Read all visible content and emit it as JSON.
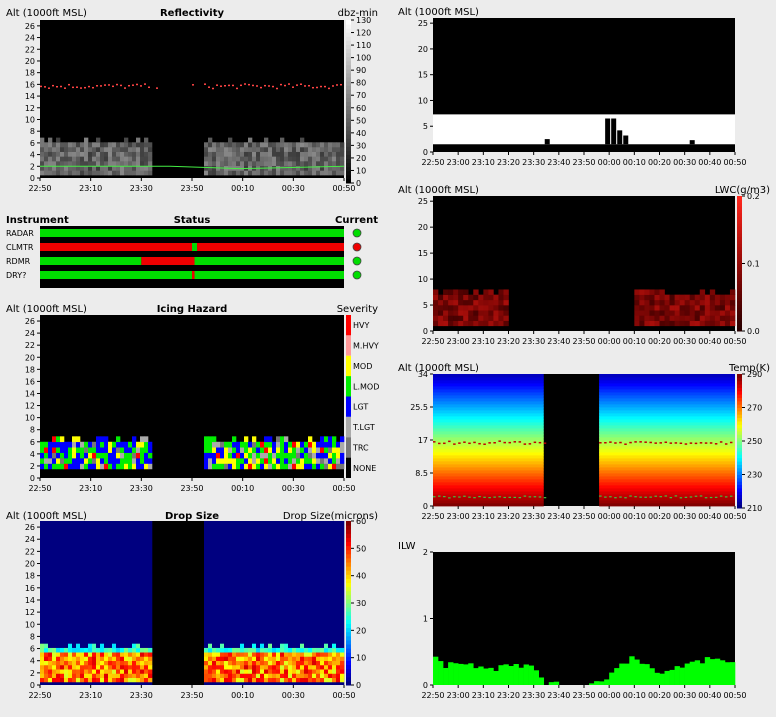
{
  "time_ticks": [
    "22:50",
    "23:10",
    "23:30",
    "23:50",
    "00:10",
    "00:30",
    "00:50"
  ],
  "time_ticks_right": [
    "22:50",
    "23:00",
    "23:10",
    "23:20",
    "23:30",
    "23:40",
    "23:50",
    "00:00",
    "00:10",
    "00:20",
    "00:30",
    "00:40",
    "00:50"
  ],
  "data_gap": {
    "start": "23:35",
    "end": "23:55"
  },
  "colors": {
    "background": "#ececec",
    "plot": "#000000",
    "status_ok": "#00dd00",
    "status_bad": "#ee0000",
    "melting_layer": "#ff4444",
    "cloud_base": "#44ee44",
    "ilw": "#00ff00",
    "drop_background": "#000080"
  },
  "panels": {
    "reflectivity": {
      "alt_label": "Alt (1000ft MSL)",
      "title": "Reflectivity",
      "unit": "dbz-min",
      "yticks": [
        0,
        2,
        4,
        6,
        8,
        10,
        12,
        14,
        16,
        18,
        20,
        22,
        24,
        26
      ],
      "colorbar_ticks": [
        0,
        10,
        20,
        30,
        40,
        50,
        60,
        70,
        80,
        90,
        100,
        110,
        120,
        130
      ],
      "colormap": "grayscale"
    },
    "status": {
      "header_instrument": "Instrument",
      "header_status": "Status",
      "header_current": "Current",
      "rows": [
        {
          "name": "RADAR",
          "segments": [
            [
              "22:50",
              "00:50",
              "ok"
            ]
          ],
          "current": "ok"
        },
        {
          "name": "CLMTR",
          "segments": [
            [
              "22:50",
              "23:50",
              "bad"
            ],
            [
              "23:50",
              "23:52",
              "ok"
            ],
            [
              "23:52",
              "00:50",
              "bad"
            ]
          ],
          "current": "bad"
        },
        {
          "name": "RDMR",
          "segments": [
            [
              "22:50",
              "23:30",
              "ok"
            ],
            [
              "23:30",
              "23:51",
              "bad"
            ],
            [
              "23:51",
              "00:50",
              "ok"
            ]
          ],
          "current": "ok"
        },
        {
          "name": "DRY?",
          "segments": [
            [
              "22:50",
              "23:50",
              "ok"
            ],
            [
              "23:50",
              "23:51",
              "bad"
            ],
            [
              "23:51",
              "00:50",
              "ok"
            ]
          ],
          "current": "ok"
        }
      ]
    },
    "icing": {
      "alt_label": "Alt (1000ft MSL)",
      "title": "Icing Hazard",
      "unit": "Severity",
      "yticks": [
        0,
        2,
        4,
        6,
        8,
        10,
        12,
        14,
        16,
        18,
        20,
        22,
        24,
        26
      ],
      "categories": [
        {
          "label": "HVY",
          "color": "#ff0000"
        },
        {
          "label": "M.HVY",
          "color": "#ff9999"
        },
        {
          "label": "MOD",
          "color": "#ffff00"
        },
        {
          "label": "L.MOD",
          "color": "#00ee00"
        },
        {
          "label": "LGT",
          "color": "#0000ff"
        },
        {
          "label": "T.LGT",
          "color": "#aaaaaa"
        },
        {
          "label": "TRC",
          "color": "#777777"
        },
        {
          "label": "NONE",
          "color": "#000000"
        }
      ]
    },
    "dropsize": {
      "alt_label": "Alt (1000ft MSL)",
      "title": "Drop Size",
      "unit": "Drop Size(microns)",
      "yticks": [
        0,
        2,
        4,
        6,
        8,
        10,
        12,
        14,
        16,
        18,
        20,
        22,
        24,
        26
      ],
      "colorbar_ticks": [
        0,
        10,
        20,
        30,
        40,
        50,
        60
      ],
      "colormap": "jet"
    },
    "cloudmask": {
      "alt_label": "Alt (1000ft MSL)",
      "yticks": [
        0,
        5,
        10,
        15,
        20,
        25
      ]
    },
    "lwc": {
      "alt_label": "Alt (1000ft MSL)",
      "unit": "LWC(g/m3)",
      "yticks": [
        0,
        5,
        10,
        15,
        20,
        25
      ],
      "colorbar_ticks": [
        "0.0",
        "0.1",
        "0.2"
      ],
      "colormap": "dark-red"
    },
    "temp": {
      "alt_label": "Alt (1000ft MSL)",
      "unit": "Temp(K)",
      "yticks": [
        "0",
        "8.5",
        "17",
        "25.5",
        "34"
      ],
      "colorbar_ticks": [
        210,
        230,
        250,
        270,
        290
      ],
      "colormap": "jet"
    },
    "ilw": {
      "title": "ILW",
      "yticks": [
        0,
        1,
        2
      ]
    }
  },
  "chart_data": [
    {
      "type": "heatmap",
      "title": "Reflectivity",
      "ylabel": "Alt (1000ft MSL)",
      "colorbar_label": "dbz-min",
      "ylim": [
        0,
        27
      ],
      "xlim": [
        "22:50",
        "00:50"
      ],
      "clim": [
        0,
        130
      ],
      "echo_layer": {
        "base": 0.5,
        "top": 6.3,
        "value_range": [
          30,
          70
        ]
      },
      "melting_layer_alt": 15.8,
      "cloud_base_alt": 2.0
    },
    {
      "type": "heatmap",
      "title": "Icing Hazard",
      "ylabel": "Alt (1000ft MSL)",
      "colorbar_label": "Severity",
      "ylim": [
        0,
        27
      ],
      "xlim": [
        "22:50",
        "00:50"
      ],
      "hazard_layer": {
        "base": 1.5,
        "top": 6.3,
        "dominant": [
          "LGT",
          "L.MOD",
          "MOD"
        ]
      }
    },
    {
      "type": "heatmap",
      "title": "Drop Size",
      "ylabel": "Alt (1000ft MSL)",
      "colorbar_label": "Drop Size(microns)",
      "ylim": [
        0,
        27
      ],
      "xlim": [
        "22:50",
        "00:50"
      ],
      "clim": [
        0,
        60
      ],
      "cloud_layer": {
        "base": 0.5,
        "top": 6.3,
        "value_range": [
          35,
          55
        ]
      },
      "background_value": 0
    },
    {
      "type": "heatmap",
      "ylabel": "Alt (1000ft MSL)",
      "ylim": [
        0,
        26
      ],
      "xlim": [
        "22:50",
        "00:50"
      ],
      "cloud_band": {
        "base": 1.5,
        "top": 7.3
      }
    },
    {
      "type": "heatmap",
      "ylabel": "Alt (1000ft MSL)",
      "colorbar_label": "LWC(g/m3)",
      "ylim": [
        0,
        26
      ],
      "xlim": [
        "22:50",
        "00:50"
      ],
      "clim": [
        0,
        0.2
      ],
      "lwc_layer": {
        "base": 1,
        "top": 7.5,
        "value_range": [
          0.03,
          0.12
        ]
      }
    },
    {
      "type": "heatmap",
      "ylabel": "Alt (1000ft MSL)",
      "colorbar_label": "Temp(K)",
      "ylim": [
        0,
        34
      ],
      "xlim": [
        "22:50",
        "00:50"
      ],
      "clim": [
        210,
        290
      ],
      "surface_temp": 290,
      "top_temp": 215,
      "melting_layer_alt": 16.5,
      "cloud_base_alt": 2.5
    },
    {
      "type": "bar",
      "title": "ILW",
      "ylim": [
        0,
        2
      ],
      "xlim": [
        "22:50",
        "00:50"
      ],
      "x": [
        "22:50",
        "22:55",
        "23:00",
        "23:05",
        "23:10",
        "23:15",
        "23:20",
        "23:25",
        "23:30",
        "23:35",
        "23:55",
        "00:00",
        "00:05",
        "00:10",
        "00:15",
        "00:20",
        "00:25",
        "00:30",
        "00:35",
        "00:40",
        "00:45",
        "00:50"
      ],
      "values": [
        0.5,
        0.3,
        0.35,
        0.3,
        0.3,
        0.25,
        0.35,
        0.25,
        0.3,
        0,
        0.05,
        0.15,
        0.3,
        0.45,
        0.3,
        0.15,
        0.2,
        0.3,
        0.35,
        0.4,
        0.35,
        0.35
      ]
    }
  ]
}
